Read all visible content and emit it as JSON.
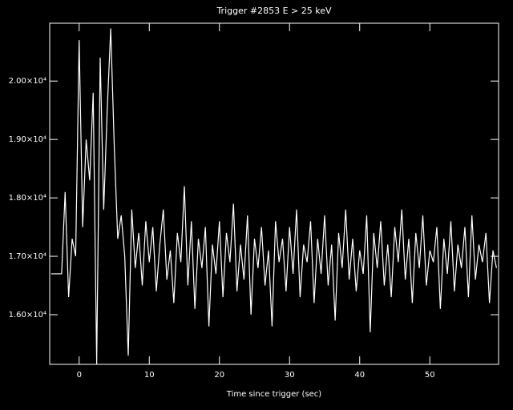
{
  "chart_data": {
    "type": "line",
    "title": "Trigger #2853 E > 25 keV",
    "x_label": "Time since trigger (sec)",
    "x": [
      -4,
      -3.5,
      -3,
      -2.5,
      -2,
      -1.5,
      -1,
      -0.5,
      0,
      0.5,
      1,
      1.5,
      2,
      2.5,
      3,
      3.5,
      4,
      4.5,
      5,
      5.5,
      6,
      6.5,
      7,
      7.5,
      8,
      8.5,
      9,
      9.5,
      10,
      10.5,
      11,
      11.5,
      12,
      12.5,
      13,
      13.5,
      14,
      14.5,
      15,
      15.5,
      16,
      16.5,
      17,
      17.5,
      18,
      18.5,
      19,
      19.5,
      20,
      20.5,
      21,
      21.5,
      22,
      22.5,
      23,
      23.5,
      24,
      24.5,
      25,
      25.5,
      26,
      26.5,
      27,
      27.5,
      28,
      28.5,
      29,
      29.5,
      30,
      30.5,
      31,
      31.5,
      32,
      32.5,
      33,
      33.5,
      34,
      34.5,
      35,
      35.5,
      36,
      36.5,
      37,
      37.5,
      38,
      38.5,
      39,
      39.5,
      40,
      40.5,
      41,
      41.5,
      42,
      42.5,
      43,
      43.5,
      44,
      44.5,
      45,
      45.5,
      46,
      46.5,
      47,
      47.5,
      48,
      48.5,
      49,
      49.5,
      50,
      50.5,
      51,
      51.5,
      52,
      52.5,
      53,
      53.5,
      54,
      54.5,
      55,
      55.5,
      56,
      56.5,
      57,
      57.5,
      58,
      58.5,
      59,
      59.5
    ],
    "series": [
      {
        "color": "#ffffff",
        "values": [
          16700,
          16700,
          16700,
          16700,
          18100,
          16300,
          17300,
          17000,
          20700,
          17500,
          19000,
          18300,
          19800,
          15150,
          20400,
          17800,
          19500,
          20900,
          18900,
          17300,
          17700,
          17000,
          15300,
          17800,
          16800,
          17400,
          16500,
          17600,
          16900,
          17500,
          16400,
          17200,
          17800,
          16600,
          17100,
          16200,
          17400,
          16900,
          18200,
          16500,
          17600,
          16100,
          17300,
          16800,
          17500,
          15800,
          17200,
          16700,
          17600,
          16300,
          17400,
          16900,
          17900,
          16400,
          17200,
          16600,
          17700,
          16000,
          17300,
          16800,
          17500,
          16500,
          17100,
          15800,
          17600,
          16900,
          17300,
          16400,
          17500,
          16700,
          17800,
          16300,
          17200,
          16900,
          17600,
          16200,
          17300,
          16700,
          17700,
          16500,
          17200,
          15900,
          17400,
          16800,
          17800,
          16600,
          17300,
          16400,
          17100,
          16700,
          17700,
          15700,
          17400,
          16800,
          17600,
          16500,
          17200,
          16300,
          17500,
          16900,
          17800,
          16600,
          17300,
          16200,
          17400,
          16800,
          17700,
          16500,
          17100,
          16900,
          17500,
          16100,
          17300,
          16700,
          17600,
          16400,
          17200,
          16800,
          17500,
          16300,
          17700,
          16600,
          17200,
          16900,
          17400,
          16200,
          17100,
          16800
        ]
      }
    ],
    "xlim": [
      -4.2,
      59.8
    ],
    "ylim": [
      15150,
      20990
    ],
    "xticks": [
      0,
      10,
      20,
      30,
      40,
      50
    ],
    "yticks": [
      {
        "value": 16000,
        "label": "1.60×10⁴"
      },
      {
        "value": 17000,
        "label": "1.70×10⁴"
      },
      {
        "value": 18000,
        "label": "1.80×10⁴"
      },
      {
        "value": 19000,
        "label": "1.90×10⁴"
      },
      {
        "value": 20000,
        "label": "2.00×10⁴"
      }
    ]
  }
}
